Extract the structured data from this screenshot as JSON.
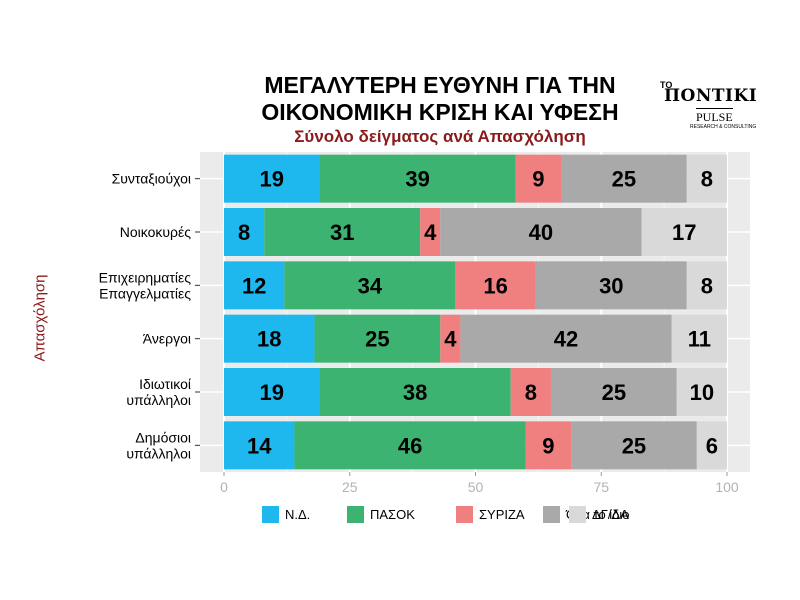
{
  "title_line1": "ΜΕΓΑΛΥΤΕΡΗ ΕΥΘΥΝΗ ΓΙΑ ΤΗΝ",
  "title_line2": "ΟΙΚΟΝΟΜΙΚΗ ΚΡΙΣΗ ΚΑΙ ΥΦΕΣΗ",
  "subtitle": "Σύνολο δείγματος ανά Απασχόληση",
  "logo": {
    "to": "ΤΟ",
    "name": "ΠΟΝΤΙΚΙ",
    "pulse": "PULSE",
    "pulse_sub": "RESEARCH & CONSULTING"
  },
  "chart_data": {
    "type": "bar",
    "orientation": "horizontal",
    "stacked": true,
    "title": "ΜΕΓΑΛΥΤΕΡΗ ΕΥΘΥΝΗ ΓΙΑ ΤΗΝ ΟΙΚΟΝΟΜΙΚΗ ΚΡΙΣΗ ΚΑΙ ΥΦΕΣΗ",
    "subtitle": "Σύνολο δείγματος ανά Απασχόληση",
    "ylabel": "Απασχόληση",
    "xlabel": "",
    "xlim": [
      0,
      100
    ],
    "xticks": [
      0,
      25,
      50,
      75,
      100
    ],
    "grid": true,
    "legend_position": "bottom",
    "categories": [
      [
        "Συνταξιούχοι"
      ],
      [
        "Νοικοκυρές"
      ],
      [
        "Επιχειρηματίες",
        "Επαγγελματίες"
      ],
      [
        "Άνεργοι"
      ],
      [
        "Ιδιωτικοί",
        "υπάλληλοι"
      ],
      [
        "Δημόσιοι",
        "υπάλληλοι"
      ]
    ],
    "series": [
      {
        "name": "Ν.Δ.",
        "color": "#1fb8ee",
        "values": [
          19,
          8,
          12,
          18,
          19,
          14
        ]
      },
      {
        "name": "ΠΑΣΟΚ",
        "color": "#3cb371",
        "values": [
          39,
          31,
          34,
          25,
          38,
          46
        ]
      },
      {
        "name": "ΣΥΡΙΖΑ",
        "color": "#f08080",
        "values": [
          9,
          4,
          16,
          4,
          8,
          9
        ]
      },
      {
        "name": "Όλα το ίδιο",
        "color": "#a9a9a9",
        "values": [
          25,
          40,
          30,
          42,
          25,
          25
        ]
      },
      {
        "name": "ΔΓ/ΔΑ",
        "color": "#d9d9d9",
        "values": [
          8,
          17,
          8,
          11,
          10,
          6
        ]
      }
    ]
  }
}
